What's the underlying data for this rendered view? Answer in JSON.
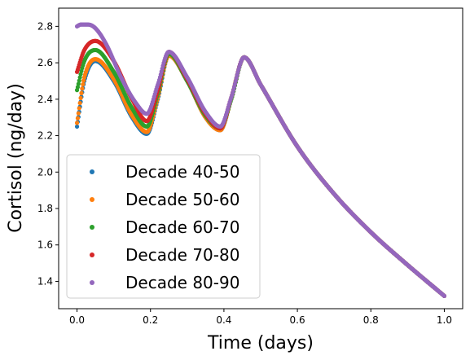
{
  "chart_data": {
    "type": "scatter",
    "title": "",
    "xlabel": "Time (days)",
    "ylabel": "Cortisol (ng/day)",
    "xlim": [
      -0.05,
      1.05
    ],
    "ylim": [
      1.25,
      2.9
    ],
    "xticks": [
      0.0,
      0.2,
      0.4,
      0.6,
      0.8,
      1.0
    ],
    "xtick_labels": [
      "0.0",
      "0.2",
      "0.4",
      "0.6",
      "0.8",
      "1.0"
    ],
    "yticks": [
      1.4,
      1.6,
      1.8,
      2.0,
      2.2,
      2.4,
      2.6,
      2.8
    ],
    "ytick_labels": [
      "1.4",
      "1.6",
      "1.8",
      "2.0",
      "2.2",
      "2.4",
      "2.6",
      "2.8"
    ],
    "grid": false,
    "legend_position": "lower-left",
    "series": [
      {
        "name": "Decade 40-50",
        "color": "#1f77b4",
        "x": [
          0.0,
          0.02,
          0.05,
          0.1,
          0.15,
          0.19,
          0.22,
          0.25,
          0.3,
          0.35,
          0.39,
          0.42,
          0.455,
          0.5,
          0.6,
          0.7,
          0.8,
          0.9,
          1.0
        ],
        "y": [
          2.25,
          2.5,
          2.61,
          2.5,
          2.3,
          2.21,
          2.4,
          2.64,
          2.5,
          2.3,
          2.23,
          2.4,
          2.63,
          2.48,
          2.14,
          1.88,
          1.67,
          1.49,
          1.32
        ]
      },
      {
        "name": "Decade 50-60",
        "color": "#ff7f0e",
        "x": [
          0.0,
          0.02,
          0.05,
          0.1,
          0.15,
          0.19,
          0.22,
          0.25,
          0.3,
          0.35,
          0.39,
          0.42,
          0.455,
          0.5,
          0.6,
          0.7,
          0.8,
          0.9,
          1.0
        ],
        "y": [
          2.27,
          2.52,
          2.62,
          2.51,
          2.31,
          2.22,
          2.41,
          2.64,
          2.5,
          2.3,
          2.23,
          2.4,
          2.63,
          2.48,
          2.14,
          1.88,
          1.67,
          1.49,
          1.32
        ]
      },
      {
        "name": "Decade 60-70",
        "color": "#2ca02c",
        "x": [
          0.0,
          0.02,
          0.05,
          0.1,
          0.15,
          0.19,
          0.22,
          0.25,
          0.3,
          0.35,
          0.39,
          0.42,
          0.455,
          0.5,
          0.6,
          0.7,
          0.8,
          0.9,
          1.0
        ],
        "y": [
          2.45,
          2.61,
          2.67,
          2.55,
          2.35,
          2.25,
          2.43,
          2.65,
          2.5,
          2.31,
          2.24,
          2.4,
          2.63,
          2.48,
          2.14,
          1.88,
          1.67,
          1.49,
          1.32
        ]
      },
      {
        "name": "Decade 70-80",
        "color": "#d62728",
        "x": [
          0.0,
          0.02,
          0.05,
          0.1,
          0.15,
          0.19,
          0.22,
          0.25,
          0.3,
          0.35,
          0.39,
          0.42,
          0.455,
          0.5,
          0.6,
          0.7,
          0.8,
          0.9,
          1.0
        ],
        "y": [
          2.55,
          2.67,
          2.72,
          2.61,
          2.4,
          2.28,
          2.45,
          2.66,
          2.51,
          2.32,
          2.24,
          2.41,
          2.63,
          2.48,
          2.14,
          1.88,
          1.67,
          1.49,
          1.32
        ]
      },
      {
        "name": "Decade 80-90",
        "color": "#9467bd",
        "x": [
          0.0,
          0.01,
          0.03,
          0.05,
          0.08,
          0.12,
          0.16,
          0.19,
          0.22,
          0.25,
          0.3,
          0.35,
          0.39,
          0.42,
          0.455,
          0.5,
          0.6,
          0.7,
          0.8,
          0.9,
          1.0
        ],
        "y": [
          2.8,
          2.81,
          2.81,
          2.79,
          2.7,
          2.52,
          2.38,
          2.32,
          2.48,
          2.66,
          2.52,
          2.33,
          2.25,
          2.41,
          2.63,
          2.48,
          2.14,
          1.88,
          1.67,
          1.49,
          1.32
        ]
      }
    ]
  }
}
